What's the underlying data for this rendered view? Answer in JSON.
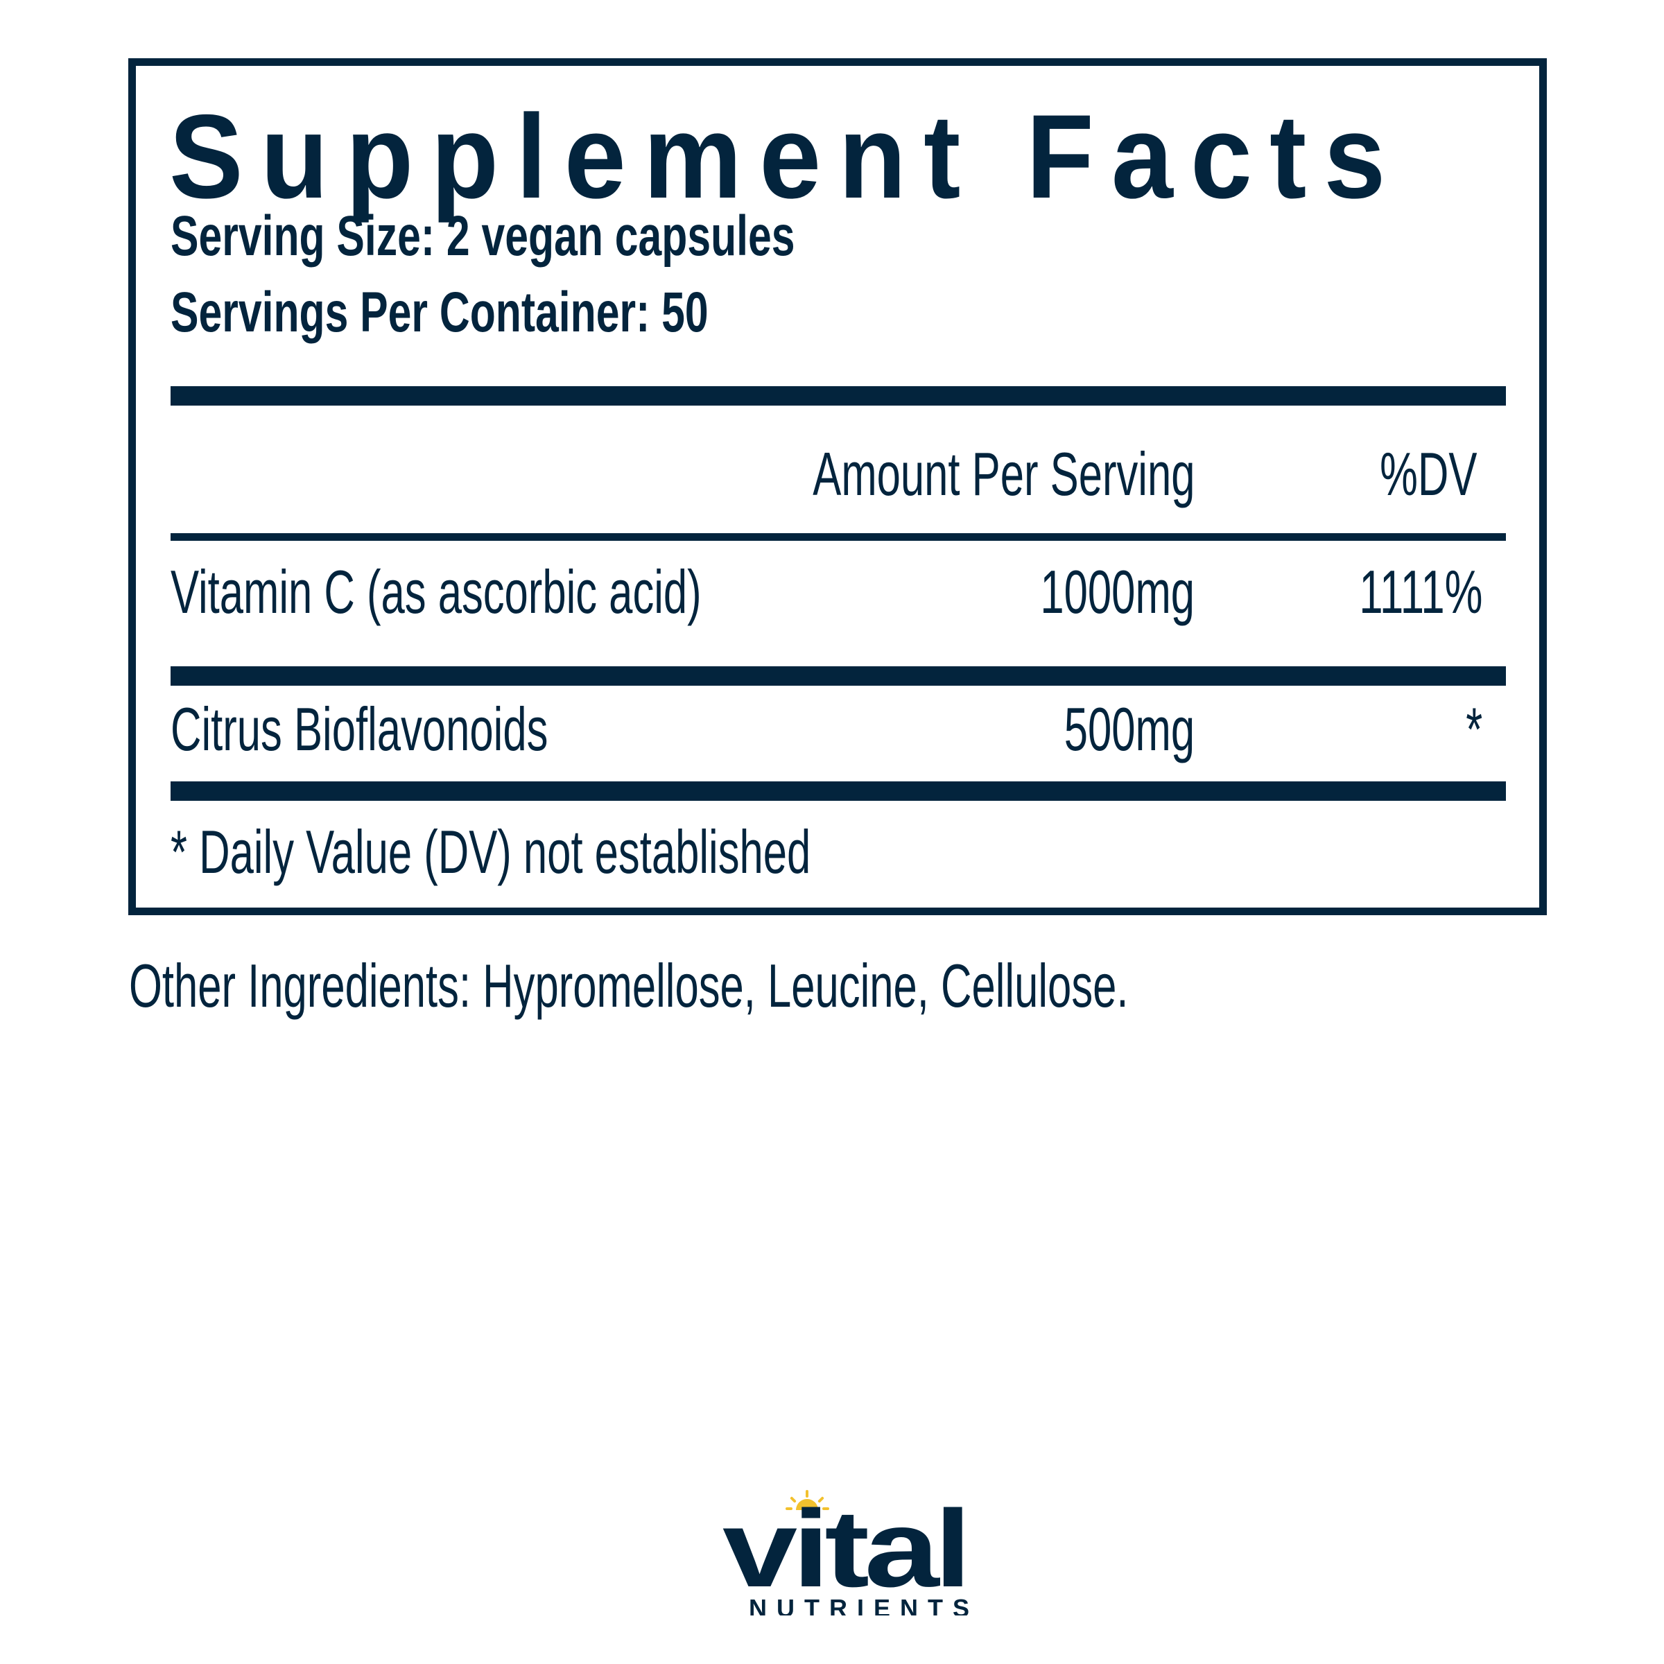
{
  "panel": {
    "title": "Supplement Facts",
    "serving_size": "Serving Size: 2 vegan capsules",
    "servings_per_container": "Servings Per Container: 50",
    "header": {
      "amount": "Amount Per Serving",
      "dv": "%DV"
    },
    "rows": [
      {
        "name": "Vitamin C (as ascorbic acid)",
        "amount": "1000mg",
        "dv": "1111%"
      },
      {
        "name": "Citrus Bioflavonoids",
        "amount": "500mg",
        "dv": "*"
      }
    ],
    "footnote": "* Daily Value (DV) not established"
  },
  "other_ingredients": "Other Ingredients: Hypromellose, Leucine, Cellulose.",
  "logo": {
    "word": "vital",
    "sub": "NUTRIENTS"
  },
  "colors": {
    "ink": "#03243d",
    "sun": "#f2c12e"
  }
}
